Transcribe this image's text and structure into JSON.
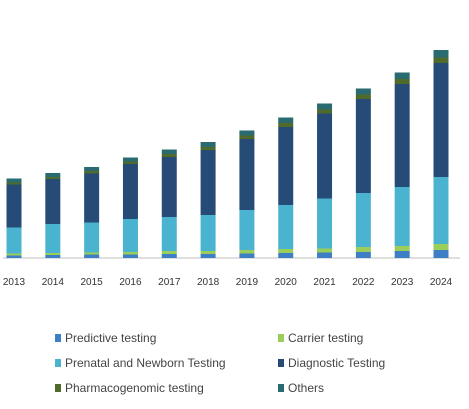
{
  "chart_data": {
    "type": "bar",
    "stacked": true,
    "title": "",
    "xlabel": "",
    "ylabel": "",
    "y_axis_visible": false,
    "grid": false,
    "legend_position": "bottom",
    "categories": [
      "2013",
      "2014",
      "2015",
      "2016",
      "2017",
      "2018",
      "2019",
      "2020",
      "2021",
      "2022",
      "2023",
      "2024"
    ],
    "ylim": [
      0,
      230
    ],
    "series": [
      {
        "name": "Predictive testing",
        "color": "#3d7ec4",
        "values": [
          2.5,
          3,
          3.5,
          3.5,
          4,
          4,
          4.5,
          5,
          5.5,
          6,
          7,
          8
        ]
      },
      {
        "name": "Carrier testing",
        "color": "#9acd5a",
        "values": [
          2,
          2,
          2,
          2.5,
          3,
          3,
          3.5,
          4,
          4,
          5,
          5,
          6
        ]
      },
      {
        "name": "Prenatal and Newborn Testing",
        "color": "#4ab3cf",
        "values": [
          26,
          29,
          30,
          33,
          34,
          36,
          40,
          44,
          50,
          54,
          59,
          67
        ]
      },
      {
        "name": "Diagnostic Testing",
        "color": "#274b77",
        "values": [
          43,
          45,
          49,
          55,
          60,
          65,
          71,
          78,
          85,
          94,
          103,
          114
        ]
      },
      {
        "name": "Pharmacogenomic testing",
        "color": "#4f6a2a",
        "values": [
          2,
          2,
          2.5,
          2.5,
          3,
          3,
          3.5,
          4,
          4,
          4.5,
          5,
          5.5
        ]
      },
      {
        "name": "Others",
        "color": "#2a6b72",
        "values": [
          4,
          4,
          4,
          4,
          4.5,
          5,
          5,
          5.5,
          6,
          6,
          6.5,
          7.5
        ]
      }
    ]
  }
}
